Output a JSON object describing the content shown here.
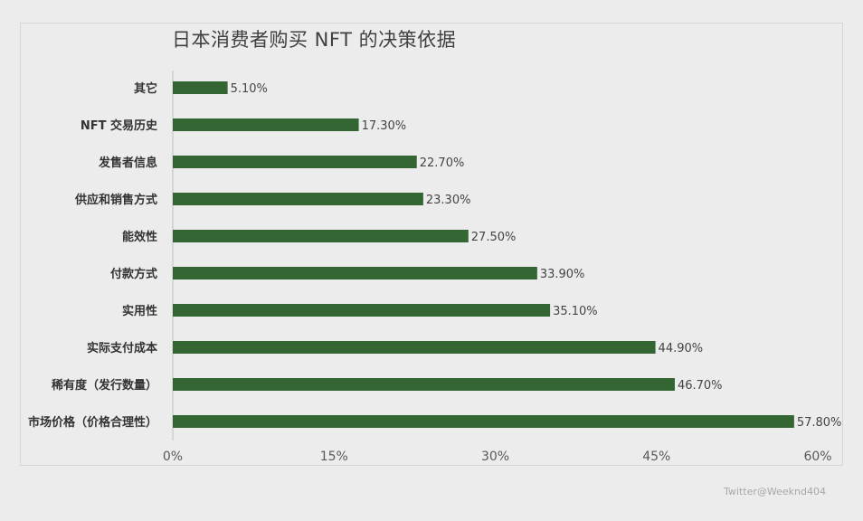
{
  "colors": {
    "bar": "#336633",
    "background": "#ececec",
    "axis": "#bfbfbf"
  },
  "watermark": "Twitter@Weeknd404",
  "chart_data": {
    "type": "bar",
    "orientation": "horizontal",
    "title": "日本消费者购买 NFT 的决策依据",
    "categories": [
      "其它",
      "NFT 交易历史",
      "发售者信息",
      "供应和销售方式",
      "能效性",
      "付款方式",
      "实用性",
      "实际支付成本",
      "稀有度（发行数量）",
      "市场价格（价格合理性）"
    ],
    "values": [
      5.1,
      17.3,
      22.7,
      23.3,
      27.5,
      33.9,
      35.1,
      44.9,
      46.7,
      57.8
    ],
    "value_labels": [
      "5.10%",
      "17.30%",
      "22.70%",
      "23.30%",
      "27.50%",
      "33.90%",
      "35.10%",
      "44.90%",
      "46.70%",
      "57.80%"
    ],
    "xlim": [
      0,
      60
    ],
    "xticks": [
      0,
      15,
      30,
      45,
      60
    ],
    "xtick_labels": [
      "0%",
      "15%",
      "30%",
      "45%",
      "60%"
    ],
    "grid": false,
    "legend": "none"
  }
}
